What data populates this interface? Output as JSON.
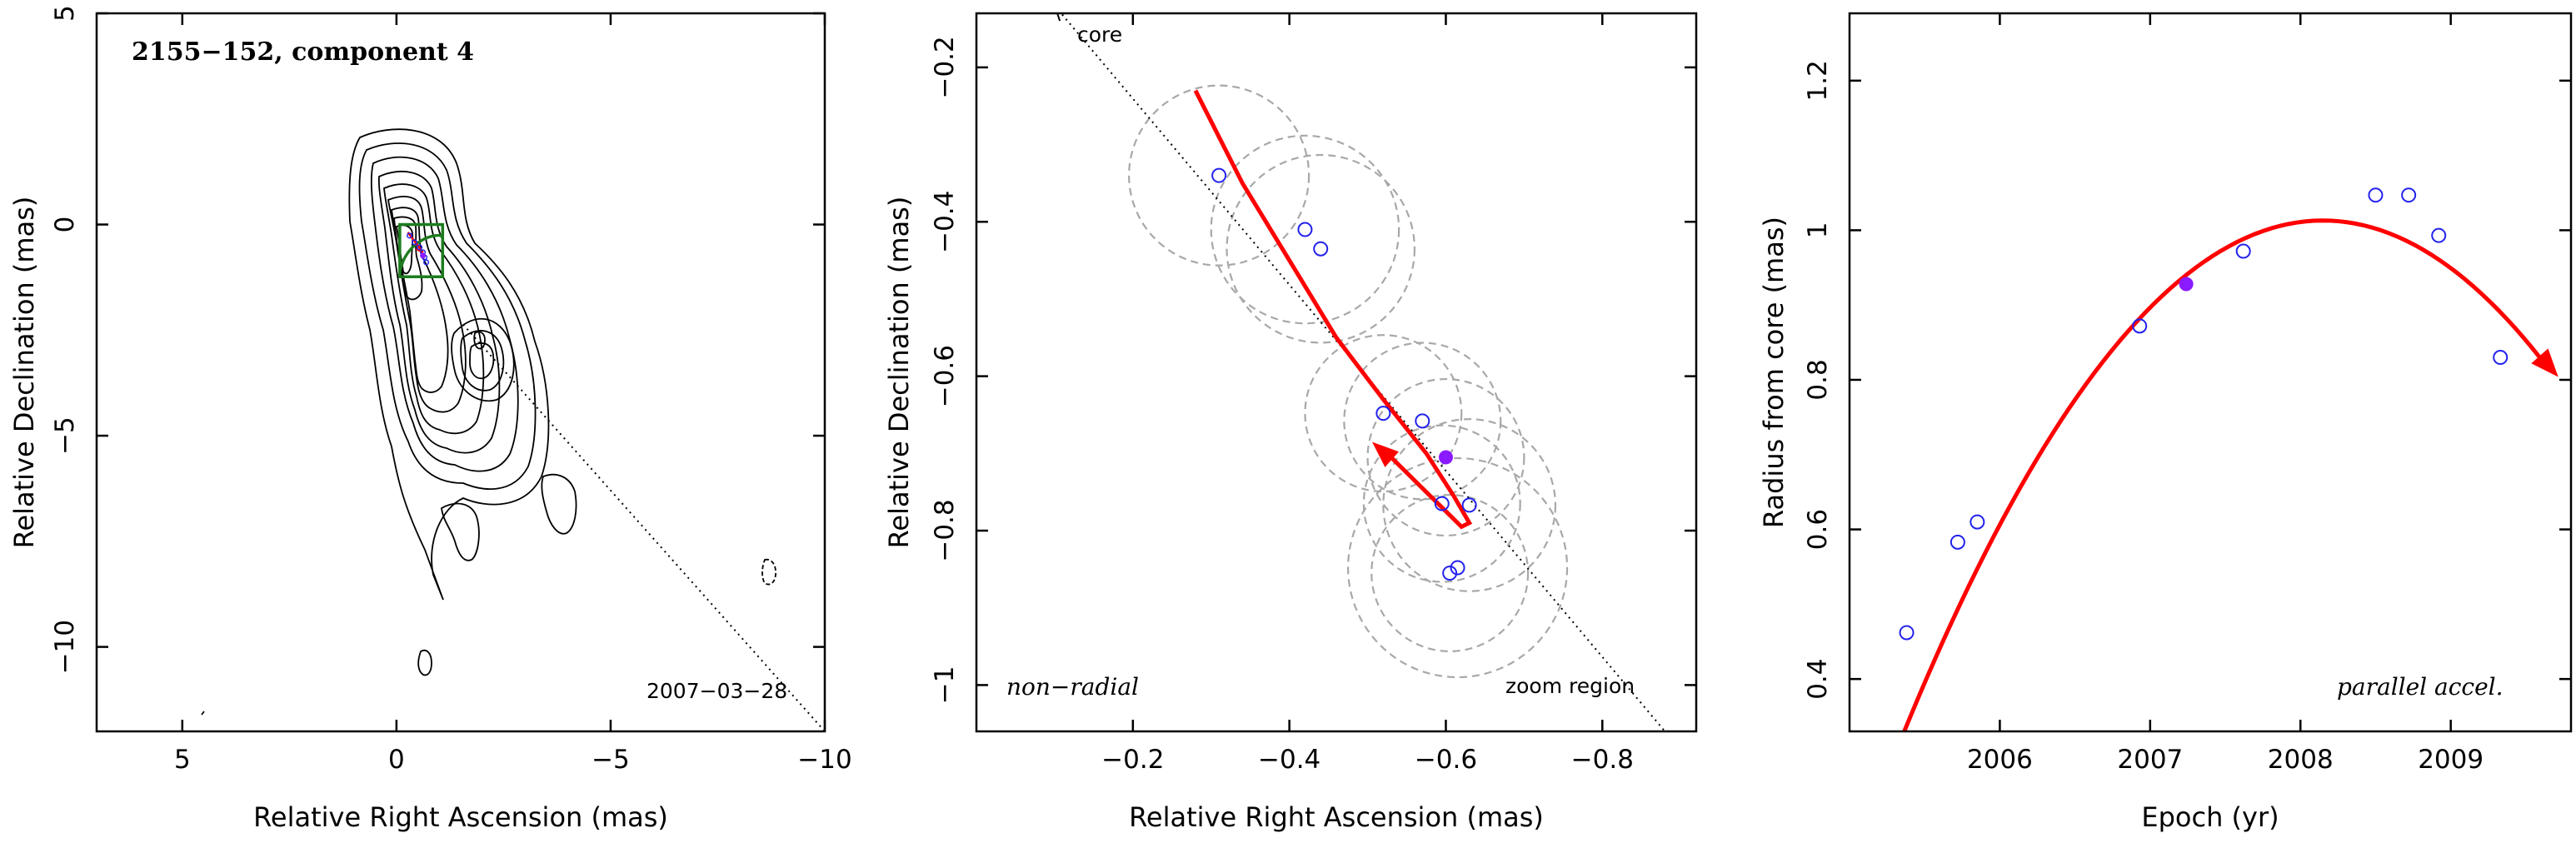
{
  "chart_data": [
    {
      "type": "contour",
      "title": "2155−152, component 4",
      "date_label": "2007−03−28",
      "xlabel": "Relative Right Ascension (mas)",
      "ylabel": "Relative Declination (mas)",
      "xlim": [
        7,
        -10
      ],
      "ylim": [
        -12,
        5
      ],
      "xticks": [
        5,
        0,
        -5,
        -10
      ],
      "yticks": [
        5,
        0,
        -5,
        -10
      ],
      "xtick_labels": [
        "5",
        "0",
        "−5",
        "−10"
      ],
      "ytick_labels": [
        "5",
        "0",
        "−5",
        "−10"
      ],
      "zoom_box": {
        "x": [
          0,
          -1
        ],
        "y": [
          -1,
          0
        ]
      },
      "core_to_component_line": {
        "from": [
          0,
          0
        ],
        "to": [
          -10,
          -12
        ]
      },
      "colors": {
        "contours": "#000000",
        "zoom_box": "#1e7b1e",
        "trajectory": "#ff0000",
        "points": "#2222ee"
      }
    },
    {
      "type": "scatter",
      "xlabel": "Relative Right Ascension (mas)",
      "ylabel": "Relative Declination (mas)",
      "xlim": [
        0,
        -0.92
      ],
      "ylim": [
        -1.06,
        -0.13
      ],
      "xticks": [
        -0.2,
        -0.4,
        -0.6,
        -0.8
      ],
      "yticks": [
        -0.2,
        -0.4,
        -0.6,
        -0.8,
        -1
      ],
      "xtick_labels": [
        "−0.2",
        "−0.4",
        "−0.6",
        "−0.8"
      ],
      "ytick_labels": [
        "−0.2",
        "−0.4",
        "−0.6",
        "−0.8",
        "−1"
      ],
      "annotations": {
        "core": "core",
        "mode": "non−radial",
        "region": "zoom region"
      },
      "points_open": [
        {
          "x": -0.31,
          "y": -0.34
        },
        {
          "x": -0.42,
          "y": -0.41
        },
        {
          "x": -0.44,
          "y": -0.435
        },
        {
          "x": -0.52,
          "y": -0.648
        },
        {
          "x": -0.57,
          "y": -0.658
        },
        {
          "x": -0.595,
          "y": -0.765
        },
        {
          "x": -0.63,
          "y": -0.767
        },
        {
          "x": -0.605,
          "y": -0.855
        },
        {
          "x": -0.615,
          "y": -0.848
        }
      ],
      "point_filled": {
        "x": -0.6,
        "y": -0.705
      },
      "error_circles": [
        {
          "x": -0.31,
          "y": -0.34,
          "r": 0.115
        },
        {
          "x": -0.42,
          "y": -0.41,
          "r": 0.12
        },
        {
          "x": -0.44,
          "y": -0.435,
          "r": 0.12
        },
        {
          "x": -0.52,
          "y": -0.648,
          "r": 0.1
        },
        {
          "x": -0.57,
          "y": -0.658,
          "r": 0.1
        },
        {
          "x": -0.6,
          "y": -0.705,
          "r": 0.1
        },
        {
          "x": -0.595,
          "y": -0.765,
          "r": 0.1
        },
        {
          "x": -0.63,
          "y": -0.767,
          "r": 0.11
        },
        {
          "x": -0.605,
          "y": -0.855,
          "r": 0.1
        },
        {
          "x": -0.615,
          "y": -0.848,
          "r": 0.14
        }
      ],
      "trajectory": [
        [
          -0.28,
          -0.23
        ],
        [
          -0.34,
          -0.35
        ],
        [
          -0.4,
          -0.45
        ],
        [
          -0.46,
          -0.55
        ],
        [
          -0.52,
          -0.63
        ],
        [
          -0.575,
          -0.7
        ],
        [
          -0.61,
          -0.755
        ],
        [
          -0.63,
          -0.79
        ],
        [
          -0.62,
          -0.795
        ],
        [
          -0.6,
          -0.775
        ],
        [
          -0.575,
          -0.75
        ],
        [
          -0.55,
          -0.725
        ],
        [
          -0.525,
          -0.7
        ]
      ],
      "core_line": {
        "from": [
          -0.1,
          -0.12
        ],
        "to": [
          -0.88,
          -1.06
        ]
      },
      "colors": {
        "circles": "#a8a8a8",
        "points": "#2222ee",
        "filled": "#8a1aff",
        "trajectory": "#ff0000"
      }
    },
    {
      "type": "scatter",
      "xlabel": "Epoch (yr)",
      "ylabel": "Radius from core (mas)",
      "xlim": [
        2005.0,
        2009.8
      ],
      "ylim": [
        0.33,
        1.29
      ],
      "xticks": [
        2006,
        2007,
        2008,
        2009
      ],
      "yticks": [
        0.4,
        0.6,
        0.8,
        1,
        1.2
      ],
      "xtick_labels": [
        "2006",
        "2007",
        "2008",
        "2009"
      ],
      "ytick_labels": [
        "0.4",
        "0.6",
        "0.8",
        "1",
        "1.2"
      ],
      "annotation": "parallel accel.",
      "points_open": [
        {
          "x": 2005.38,
          "y": 0.462
        },
        {
          "x": 2005.72,
          "y": 0.583
        },
        {
          "x": 2005.85,
          "y": 0.61
        },
        {
          "x": 2006.93,
          "y": 0.872
        },
        {
          "x": 2007.62,
          "y": 0.972
        },
        {
          "x": 2008.5,
          "y": 1.047
        },
        {
          "x": 2008.72,
          "y": 1.047
        },
        {
          "x": 2008.92,
          "y": 0.993
        },
        {
          "x": 2009.33,
          "y": 0.83
        }
      ],
      "point_filled": {
        "x": 2007.24,
        "y": 0.928
      },
      "fit": {
        "form": "quadratic",
        "peak_x": 2008.15,
        "peak_y": 1.013,
        "a": -0.088,
        "x_range": [
          2005.18,
          2009.65
        ]
      },
      "colors": {
        "points": "#2222ee",
        "filled": "#8a1aff",
        "fit": "#ff0000"
      }
    }
  ]
}
